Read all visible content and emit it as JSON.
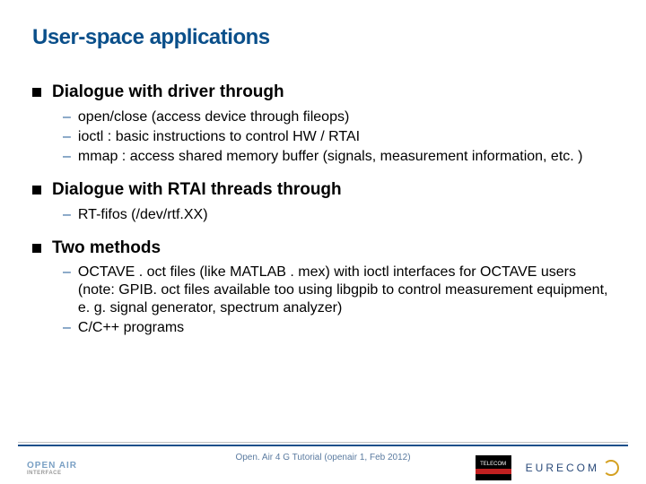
{
  "title": "User-space applications",
  "title_color": "#0a4f8a",
  "accent_color": "#2a6099",
  "sections": [
    {
      "heading": "Dialogue with driver through",
      "items": [
        "open/close (access device through fileops)",
        "ioctl : basic instructions to control HW / RTAI",
        "mmap : access shared memory buffer (signals, measurement information, etc. )"
      ]
    },
    {
      "heading": "Dialogue with RTAI threads through",
      "items": [
        "RT-fifos (/dev/rtf.XX)"
      ]
    },
    {
      "heading": "Two methods",
      "items": [
        "OCTAVE . oct files (like MATLAB . mex) with ioctl interfaces for OCTAVE users (note: GPIB. oct files available too using libgpib to control measurement equipment, e. g. signal generator, spectrum analyzer)",
        "C/C++ programs"
      ]
    }
  ],
  "footer": "Open. Air 4 G Tutorial (openair 1, Feb 2012)",
  "logos": {
    "left_main": "OPEN AIR",
    "left_sub": "INTERFACE",
    "telecom": "TELECOM",
    "eurecom": "EURECOM"
  }
}
